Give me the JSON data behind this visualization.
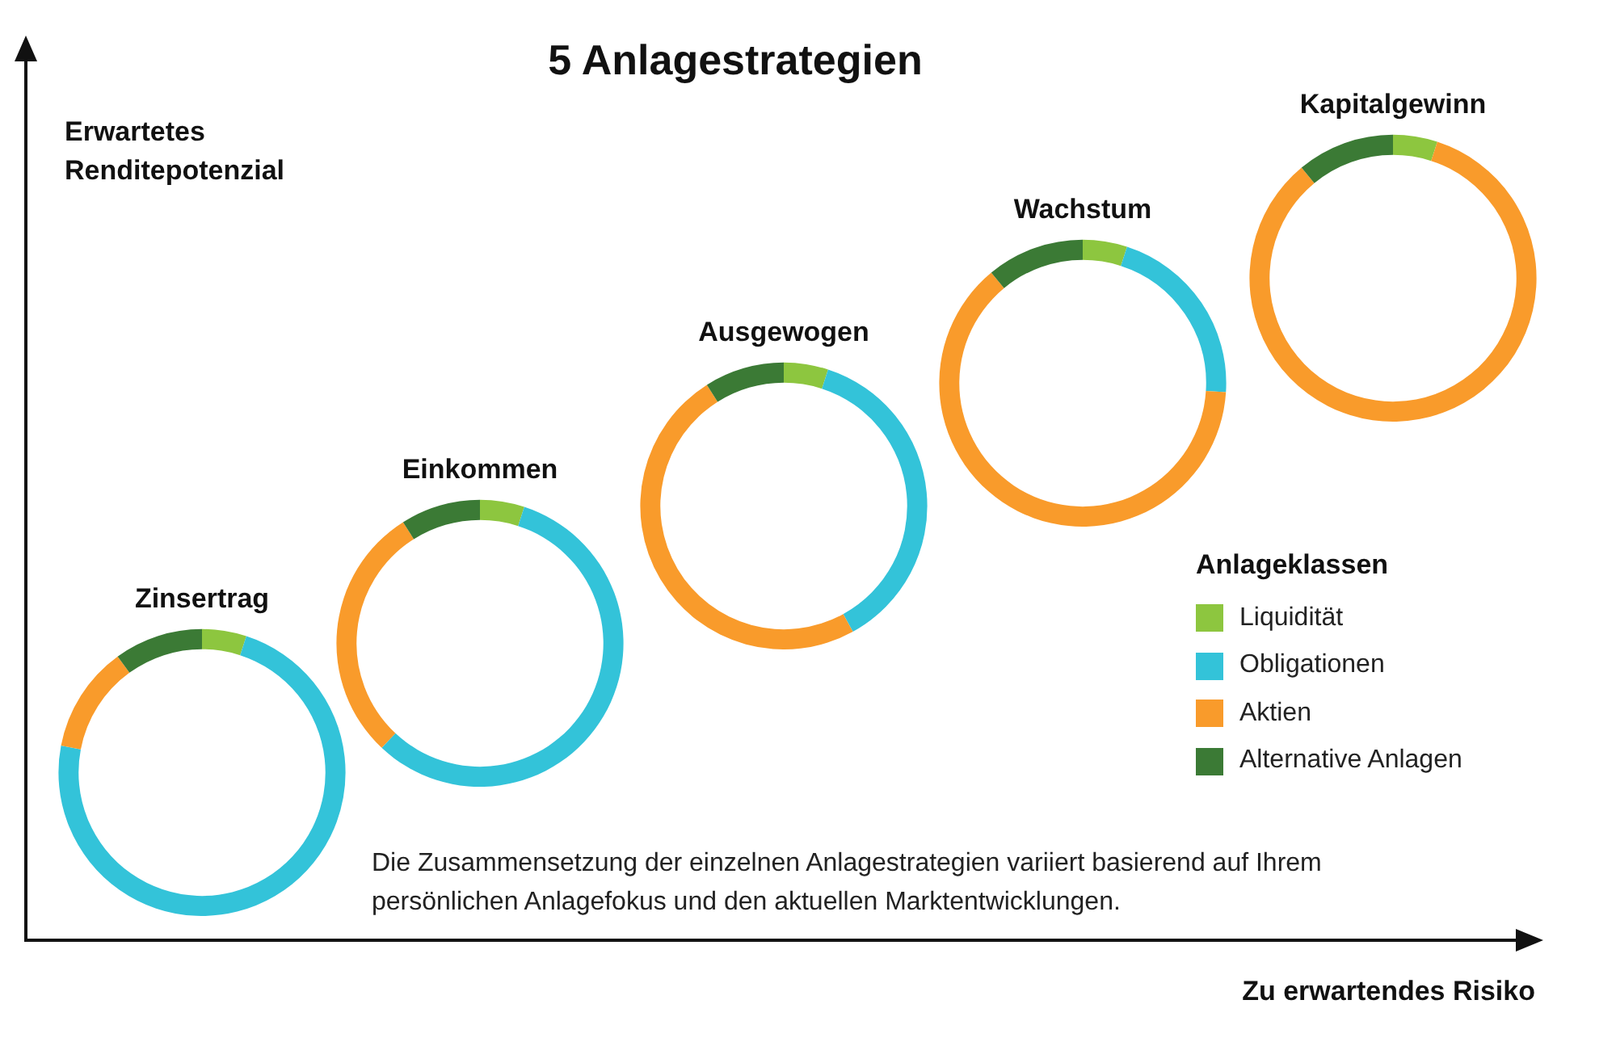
{
  "chart_data": [
    {
      "type": "other",
      "title": "5 Anlagestrategien",
      "ylabel": "Erwartetes Renditepotenzial",
      "xlabel": "Zu erwartendes Risiko",
      "annotations": [
        "Die Zusammensetzung der einzelnen Anlagestrategien variiert basierend auf Ihrem persönlichen Anlagefokus und den aktuellen Marktentwicklungen."
      ]
    },
    {
      "type": "donut",
      "title": "Zinsertrag",
      "categories": [
        "Liquidität",
        "Obligationen",
        "Aktien",
        "Alternative Anlagen"
      ],
      "values": [
        5,
        73,
        12,
        10
      ],
      "colors": [
        "#8dc63f",
        "#33c3d9",
        "#f99b2b",
        "#3b7a35"
      ],
      "legend": "right",
      "legend_title": "Anlageklassen"
    },
    {
      "type": "donut",
      "title": "Einkommen",
      "categories": [
        null,
        null,
        null,
        null
      ],
      "values": [
        5,
        57,
        29,
        9
      ],
      "colors": [
        "#8dc63f",
        "#33c3d9",
        "#f99b2b",
        "#3b7a35"
      ]
    },
    {
      "type": "donut",
      "title": "Ausgewogen",
      "categories": [
        null,
        null,
        null,
        null
      ],
      "values": [
        5,
        37,
        49,
        9
      ],
      "colors": [
        "#8dc63f",
        "#33c3d9",
        "#f99b2b",
        "#3b7a35"
      ]
    },
    {
      "type": "donut",
      "title": "Wachstum",
      "categories": [
        null,
        null,
        null,
        null
      ],
      "values": [
        5,
        21,
        63,
        11
      ],
      "colors": [
        "#8dc63f",
        "#33c3d9",
        "#f99b2b",
        "#3b7a35"
      ]
    },
    {
      "type": "donut",
      "title": "Kapitalgewinn",
      "categories": [
        null,
        null,
        null,
        null
      ],
      "values": [
        5,
        0,
        84,
        11
      ],
      "colors": [
        "#8dc63f",
        "#33c3d9",
        "#f99b2b",
        "#3b7a35"
      ]
    }
  ]
}
